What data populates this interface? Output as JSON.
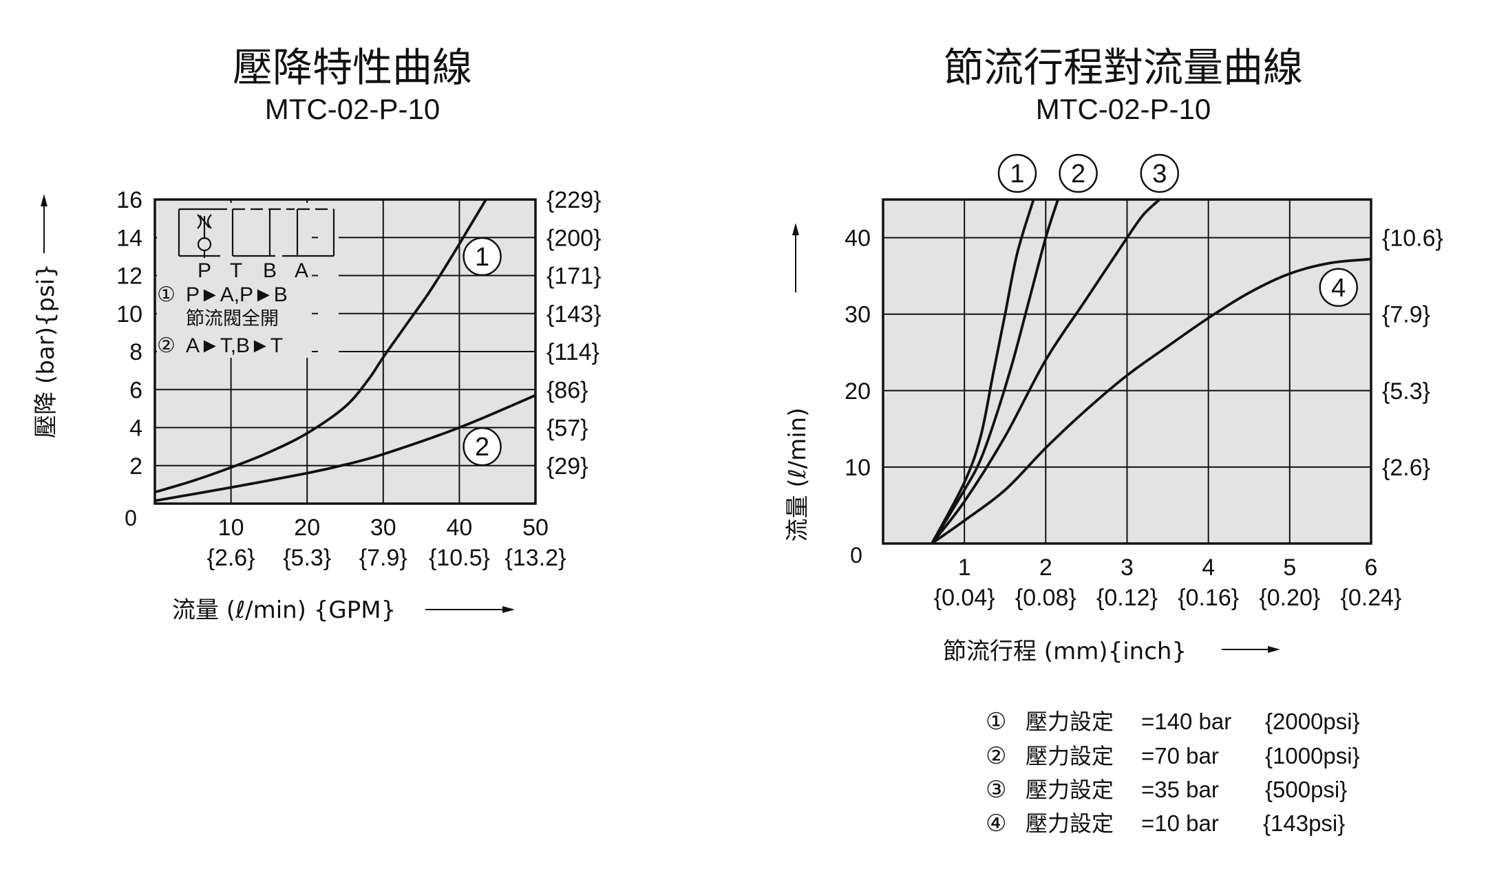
{
  "chart_data": [
    {
      "type": "line",
      "title": "壓降特性曲線",
      "subtitle": "MTC-02-P-10",
      "xlabel": "流量 (ℓ/min) {GPM}",
      "ylabel": "壓降 (bar){psi}",
      "xlim": [
        0,
        50
      ],
      "ylim": [
        0,
        16
      ],
      "x_ticks": [
        {
          "value": 10,
          "label": "10",
          "sub": "{2.6}"
        },
        {
          "value": 20,
          "label": "20",
          "sub": "{5.3}"
        },
        {
          "value": 30,
          "label": "30",
          "sub": "{7.9}"
        },
        {
          "value": 40,
          "label": "40",
          "sub": "{10.5}"
        },
        {
          "value": 50,
          "label": "50",
          "sub": "{13.2}"
        }
      ],
      "x_zero_label": "0",
      "y_ticks": [
        {
          "value": 2,
          "label": "2",
          "right": "{29}"
        },
        {
          "value": 4,
          "label": "4",
          "right": "{57}"
        },
        {
          "value": 6,
          "label": "6",
          "right": "{86}"
        },
        {
          "value": 8,
          "label": "8",
          "right": "{114}"
        },
        {
          "value": 10,
          "label": "10",
          "right": "{143}"
        },
        {
          "value": 12,
          "label": "12",
          "right": "{171}"
        },
        {
          "value": 14,
          "label": "14",
          "right": "{200}"
        },
        {
          "value": 16,
          "label": "16",
          "right": "{229}"
        }
      ],
      "grid": true,
      "series": [
        {
          "marker": "①",
          "label_at": [
            43,
            13.0
          ],
          "points": [
            [
              0,
              0.6
            ],
            [
              5,
              1.2
            ],
            [
              10,
              1.9
            ],
            [
              15,
              2.7
            ],
            [
              20,
              3.7
            ],
            [
              25,
              5.1
            ],
            [
              28,
              6.5
            ],
            [
              30,
              7.7
            ],
            [
              33,
              9.4
            ],
            [
              36,
              11.1
            ],
            [
              39,
              13.0
            ],
            [
              42,
              15.0
            ],
            [
              43.5,
              16.0
            ]
          ]
        },
        {
          "marker": "②",
          "label_at": [
            43,
            3.0
          ],
          "points": [
            [
              0,
              0.15
            ],
            [
              10,
              0.85
            ],
            [
              20,
              1.6
            ],
            [
              25,
              2.05
            ],
            [
              30,
              2.6
            ],
            [
              40,
              4.0
            ],
            [
              50,
              5.7
            ]
          ]
        }
      ],
      "inset_legend": {
        "ports": [
          "P",
          "T",
          "B",
          "A"
        ],
        "items": [
          {
            "marker": "①",
            "text": "P►A,P►B",
            "note": "節流閥全開"
          },
          {
            "marker": "②",
            "text": "A►T,B►T"
          }
        ]
      }
    },
    {
      "type": "line",
      "title": "節流行程對流量曲線",
      "subtitle": "MTC-02-P-10",
      "xlabel": "節流行程 (mm){inch}",
      "ylabel": "流量 (ℓ/min)",
      "xlim": [
        0,
        6
      ],
      "ylim": [
        0,
        45
      ],
      "x_ticks": [
        {
          "value": 1,
          "label": "1",
          "sub": "{0.04}"
        },
        {
          "value": 2,
          "label": "2",
          "sub": "{0.08}"
        },
        {
          "value": 3,
          "label": "3",
          "sub": "{0.12}"
        },
        {
          "value": 4,
          "label": "4",
          "sub": "{0.16}"
        },
        {
          "value": 5,
          "label": "5",
          "sub": "{0.20}"
        },
        {
          "value": 6,
          "label": "6",
          "sub": "{0.24}"
        }
      ],
      "y_zero_label": "0",
      "y_ticks": [
        {
          "value": 10,
          "label": "10",
          "right": "{2.6}"
        },
        {
          "value": 20,
          "label": "20",
          "right": "{5.3}"
        },
        {
          "value": 30,
          "label": "30",
          "right": "{7.9}"
        },
        {
          "value": 40,
          "label": "40",
          "right": "{10.6}"
        }
      ],
      "grid": true,
      "series": [
        {
          "marker": "①",
          "top_marker_x": 1.65,
          "points": [
            [
              0.6,
              0
            ],
            [
              1.0,
              8
            ],
            [
              1.2,
              14
            ],
            [
              1.35,
              22
            ],
            [
              1.5,
              30
            ],
            [
              1.65,
              38
            ],
            [
              1.85,
              45
            ]
          ]
        },
        {
          "marker": "②",
          "top_marker_x": 2.4,
          "points": [
            [
              0.6,
              0
            ],
            [
              1.0,
              7
            ],
            [
              1.2,
              11
            ],
            [
              1.4,
              17
            ],
            [
              1.6,
              24
            ],
            [
              1.8,
              32
            ],
            [
              2.0,
              40
            ],
            [
              2.15,
              45
            ]
          ]
        },
        {
          "marker": "③",
          "top_marker_x": 3.4,
          "points": [
            [
              0.6,
              0
            ],
            [
              1.0,
              5.5
            ],
            [
              1.5,
              14
            ],
            [
              2.0,
              24
            ],
            [
              2.5,
              32
            ],
            [
              3.0,
              40
            ],
            [
              3.2,
              43
            ],
            [
              3.4,
              45
            ]
          ]
        },
        {
          "marker": "④",
          "label_at": [
            5.6,
            33.5
          ],
          "points": [
            [
              0.6,
              0
            ],
            [
              1.0,
              3
            ],
            [
              1.5,
              7
            ],
            [
              2.0,
              12.5
            ],
            [
              2.5,
              17.5
            ],
            [
              3.0,
              22
            ],
            [
              3.5,
              25.8
            ],
            [
              4.0,
              29.5
            ],
            [
              4.5,
              32.8
            ],
            [
              5.0,
              35.3
            ],
            [
              5.5,
              36.7
            ],
            [
              6.0,
              37.2
            ]
          ]
        }
      ],
      "footnotes": [
        {
          "marker": "①",
          "label": "壓力設定",
          "value": "=140 bar",
          "psi": "{2000psi}"
        },
        {
          "marker": "②",
          "label": "壓力設定",
          "value": "=70 bar",
          "psi": "{1000psi}"
        },
        {
          "marker": "③",
          "label": "壓力設定",
          "value": "=35 bar",
          "psi": "{500psi}"
        },
        {
          "marker": "④",
          "label": "壓力設定",
          "value": "=10 bar",
          "psi": "{143psi}"
        }
      ]
    }
  ]
}
